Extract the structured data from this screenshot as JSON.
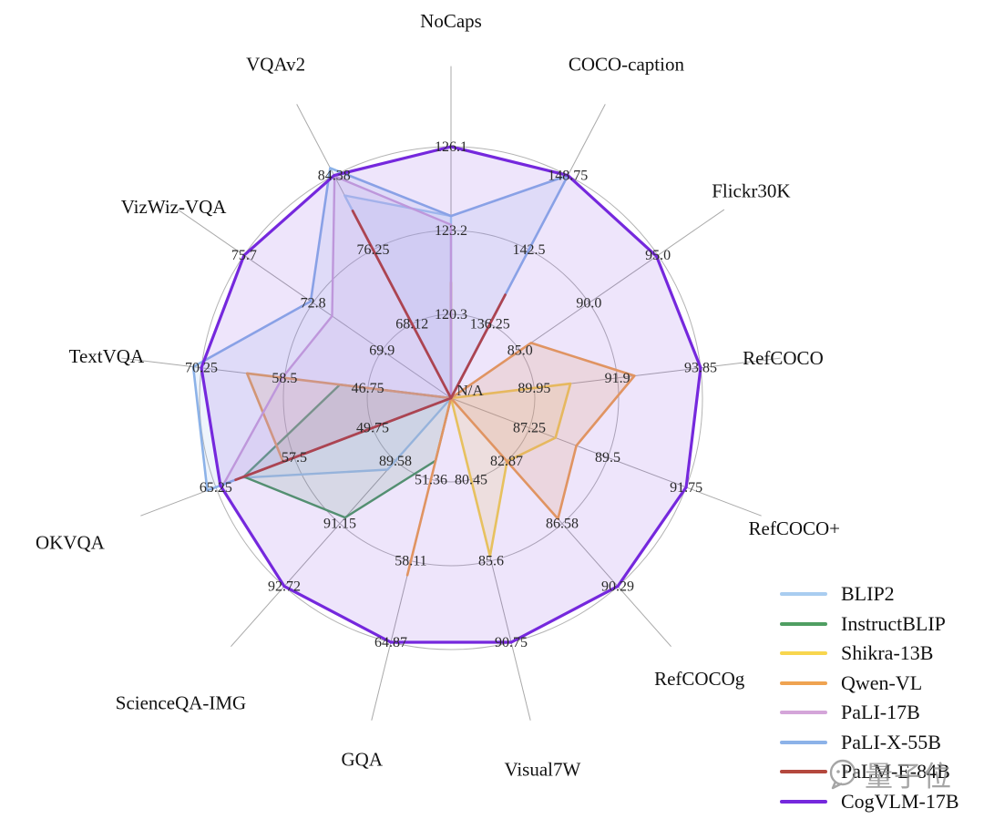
{
  "watermark": {
    "text": "量子位",
    "icon": "chat-bubble-logo",
    "color": "#8d8d8d"
  },
  "center_label": "N/A",
  "chart_data": {
    "type": "radar",
    "title": "",
    "grid": "on",
    "rings": 3,
    "legend_position": "bottom-right",
    "axes": [
      {
        "label": "NoCaps",
        "ticks": [
          "120.3",
          "123.2",
          "126.1"
        ]
      },
      {
        "label": "COCO-caption",
        "ticks": [
          "136.25",
          "142.5",
          "148.75"
        ]
      },
      {
        "label": "Flickr30K",
        "ticks": [
          "85.0",
          "90.0",
          "95.0"
        ]
      },
      {
        "label": "RefCOCO",
        "ticks": [
          "89.95",
          "91.9",
          "93.85"
        ]
      },
      {
        "label": "RefCOCO+",
        "ticks": [
          "87.25",
          "89.5",
          "91.75"
        ]
      },
      {
        "label": "RefCOCOg",
        "ticks": [
          "82.87",
          "86.58",
          "90.29"
        ]
      },
      {
        "label": "Visual7W",
        "ticks": [
          "80.45",
          "85.6",
          "90.75"
        ]
      },
      {
        "label": "GQA",
        "ticks": [
          "51.36",
          "58.11",
          "64.87"
        ]
      },
      {
        "label": "ScienceQA-IMG",
        "ticks": [
          "89.58",
          "91.15",
          "92.72"
        ]
      },
      {
        "label": "OKVQA",
        "ticks": [
          "49.75",
          "57.5",
          "65.25"
        ]
      },
      {
        "label": "TextVQA",
        "ticks": [
          "46.75",
          "58.5",
          "70.25"
        ]
      },
      {
        "label": "VizWiz-VQA",
        "ticks": [
          "69.9",
          "72.8",
          "75.7"
        ]
      },
      {
        "label": "VQAv2",
        "ticks": [
          "68.12",
          "76.25",
          "84.38"
        ]
      }
    ],
    "series": [
      {
        "name": "BLIP2",
        "color": "#a9cdf0",
        "width": 2.4,
        "fill_opacity": 0.15,
        "values": [
          123.7,
          null,
          null,
          null,
          null,
          null,
          null,
          null,
          89.8,
          62.8,
          null,
          null,
          82.2
        ]
      },
      {
        "name": "InstructBLIP",
        "color": "#4f9e62",
        "width": 2.4,
        "fill_opacity": 0.15,
        "values": [
          null,
          null,
          null,
          null,
          null,
          null,
          null,
          49.8,
          91.0,
          62.5,
          50.7,
          null,
          null
        ]
      },
      {
        "name": "Shikra-13B",
        "color": "#f8d64e",
        "width": 2.6,
        "fill_opacity": 0.18,
        "values": [
          null,
          null,
          null,
          90.8,
          88.0,
          82.9,
          85.3,
          null,
          null,
          null,
          null,
          null,
          null
        ]
      },
      {
        "name": "Qwen-VL",
        "color": "#efa351",
        "width": 2.6,
        "fill_opacity": 0.18,
        "values": [
          121.4,
          null,
          85.8,
          92.3,
          88.6,
          86.3,
          null,
          59.3,
          null,
          58.6,
          63.8,
          null,
          null
        ]
      },
      {
        "name": "PaLI-17B",
        "color": "#d4a5d9",
        "width": 2.4,
        "fill_opacity": 0.14,
        "values": [
          123.4,
          null,
          null,
          null,
          null,
          null,
          null,
          null,
          null,
          64.5,
          58.8,
          72.0,
          84.3
        ]
      },
      {
        "name": "PaLI-X-55B",
        "color": "#8cb2e8",
        "width": 2.6,
        "fill_opacity": 0.15,
        "values": [
          123.7,
          148.75,
          null,
          null,
          null,
          null,
          null,
          null,
          null,
          66.1,
          71.4,
          72.9,
          85.2
        ]
      },
      {
        "name": "PaLM-E-84B",
        "color": "#b4483e",
        "width": 2.8,
        "fill_opacity": 0.1,
        "values": [
          null,
          138.7,
          null,
          null,
          null,
          null,
          null,
          null,
          null,
          63.3,
          null,
          null,
          80.5
        ]
      },
      {
        "name": "CogVLM-17B",
        "color": "#7528dd",
        "width": 3.2,
        "fill_opacity": 0.12,
        "values": [
          126.1,
          148.75,
          94.9,
          93.85,
          91.75,
          90.29,
          90.75,
          64.87,
          92.72,
          64.8,
          70.25,
          75.7,
          84.38
        ]
      }
    ]
  }
}
